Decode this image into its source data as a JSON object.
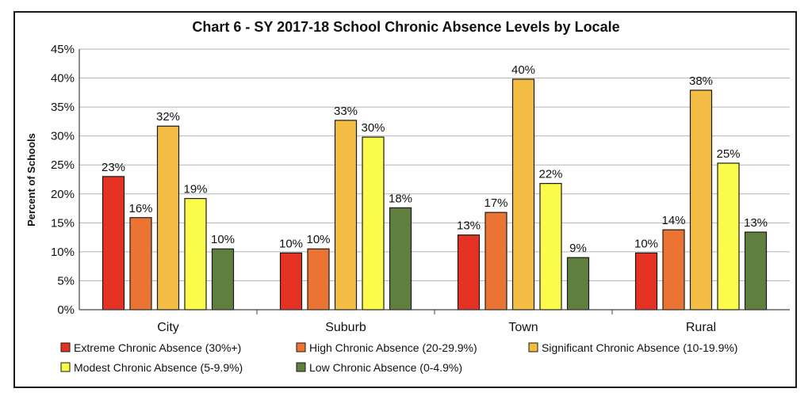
{
  "chart_data": {
    "type": "bar",
    "title": "Chart 6 - SY 2017-18 School Chronic Absence Levels by Locale",
    "xlabel": "",
    "ylabel": "Percent of Schools",
    "ylim": [
      0,
      45
    ],
    "yticks": [
      "0%",
      "5%",
      "10%",
      "15%",
      "20%",
      "25%",
      "30%",
      "35%",
      "40%",
      "45%"
    ],
    "grid": true,
    "legend_position": "bottom",
    "categories": [
      "City",
      "Suburb",
      "Town",
      "Rural"
    ],
    "series": [
      {
        "name": "Extreme Chronic Absence (30%+)",
        "color": "#e53323",
        "values": [
          23,
          9.8,
          12.9,
          9.8
        ],
        "labels": [
          "23%",
          "10%",
          "13%",
          "10%"
        ]
      },
      {
        "name": "High Chronic Absence (20-29.9%)",
        "color": "#ec7433",
        "values": [
          15.9,
          10.5,
          16.8,
          13.8
        ],
        "labels": [
          "16%",
          "10%",
          "17%",
          "14%"
        ]
      },
      {
        "name": "Significant Chronic Absence (10-19.9%)",
        "color": "#f3bc43",
        "values": [
          31.7,
          32.7,
          39.8,
          37.9
        ],
        "labels": [
          "32%",
          "33%",
          "40%",
          "38%"
        ]
      },
      {
        "name": "Modest Chronic Absence (5-9.9%)",
        "color": "#fbfb4b",
        "values": [
          19.2,
          29.8,
          21.8,
          25.3
        ],
        "labels": [
          "19%",
          "30%",
          "22%",
          "25%"
        ]
      },
      {
        "name": "Low Chronic Absence (0-4.9%)",
        "color": "#5f7f3e",
        "values": [
          10.5,
          17.6,
          9.0,
          13.4
        ],
        "labels": [
          "10%",
          "18%",
          "9%",
          "13%"
        ]
      }
    ]
  }
}
